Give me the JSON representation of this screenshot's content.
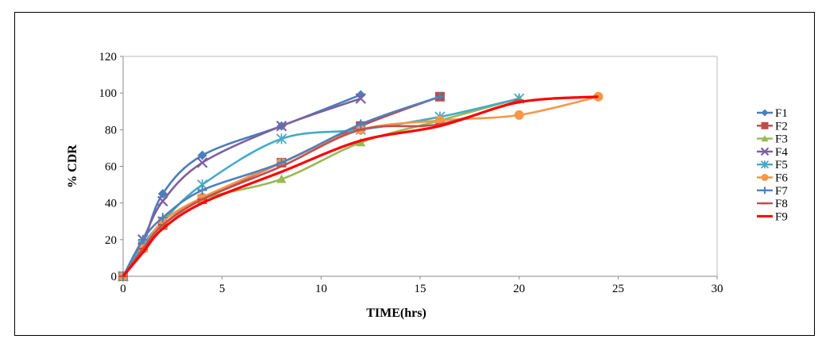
{
  "chart_data": {
    "type": "line",
    "xlabel": "TIME(hrs)",
    "ylabel": "% CDR",
    "xlim": [
      0,
      30
    ],
    "ylim": [
      0,
      120
    ],
    "xticks": [
      0,
      5,
      10,
      15,
      20,
      25,
      30
    ],
    "yticks": [
      0,
      20,
      40,
      60,
      80,
      100,
      120
    ],
    "grid": false,
    "legend_position": "right",
    "series": [
      {
        "name": "F1",
        "color": "#4A7EBB",
        "marker": "diamond",
        "x": [
          0,
          1,
          2,
          4,
          8,
          12
        ],
        "y": [
          0,
          18,
          45,
          66,
          82,
          99
        ]
      },
      {
        "name": "F2",
        "color": "#BE4B48",
        "marker": "square",
        "x": [
          0,
          1,
          2,
          4,
          8,
          12,
          16
        ],
        "y": [
          0,
          16,
          28,
          42,
          62,
          82,
          98
        ]
      },
      {
        "name": "F3",
        "color": "#98B954",
        "marker": "triangle",
        "x": [
          0,
          1,
          2,
          4,
          8,
          12,
          16,
          20
        ],
        "y": [
          0,
          15,
          28,
          42,
          53,
          73,
          85,
          97
        ]
      },
      {
        "name": "F4",
        "color": "#7D60A0",
        "marker": "x",
        "x": [
          0,
          1,
          2,
          4,
          8,
          12
        ],
        "y": [
          0,
          20,
          41,
          62,
          82,
          97
        ]
      },
      {
        "name": "F5",
        "color": "#46AAC5",
        "marker": "star",
        "x": [
          0,
          1,
          2,
          4,
          8,
          12,
          16,
          20
        ],
        "y": [
          0,
          17,
          30,
          50,
          75,
          80,
          87,
          97
        ]
      },
      {
        "name": "F6",
        "color": "#F79646",
        "marker": "circle",
        "x": [
          0,
          1,
          2,
          4,
          8,
          12,
          16,
          20,
          24
        ],
        "y": [
          0,
          15,
          30,
          43,
          62,
          80,
          85,
          88,
          98
        ]
      },
      {
        "name": "F7",
        "color": "#4F81BD",
        "marker": "plus",
        "x": [
          0,
          1,
          2,
          4,
          8,
          12,
          16
        ],
        "y": [
          0,
          20,
          32,
          47,
          62,
          83,
          98
        ]
      },
      {
        "name": "F8",
        "color": "#C0504D",
        "marker": "dash",
        "x": [
          0,
          1,
          2,
          4,
          8,
          12,
          16,
          20
        ],
        "y": [
          0,
          15,
          28,
          42,
          60,
          80,
          83,
          96
        ]
      },
      {
        "name": "F9",
        "color": "#FF0000",
        "marker": "none",
        "x": [
          0,
          1,
          2,
          4,
          8,
          12,
          16,
          20,
          24
        ],
        "y": [
          0,
          13,
          26,
          40,
          57,
          74,
          82,
          95,
          98
        ]
      }
    ]
  }
}
